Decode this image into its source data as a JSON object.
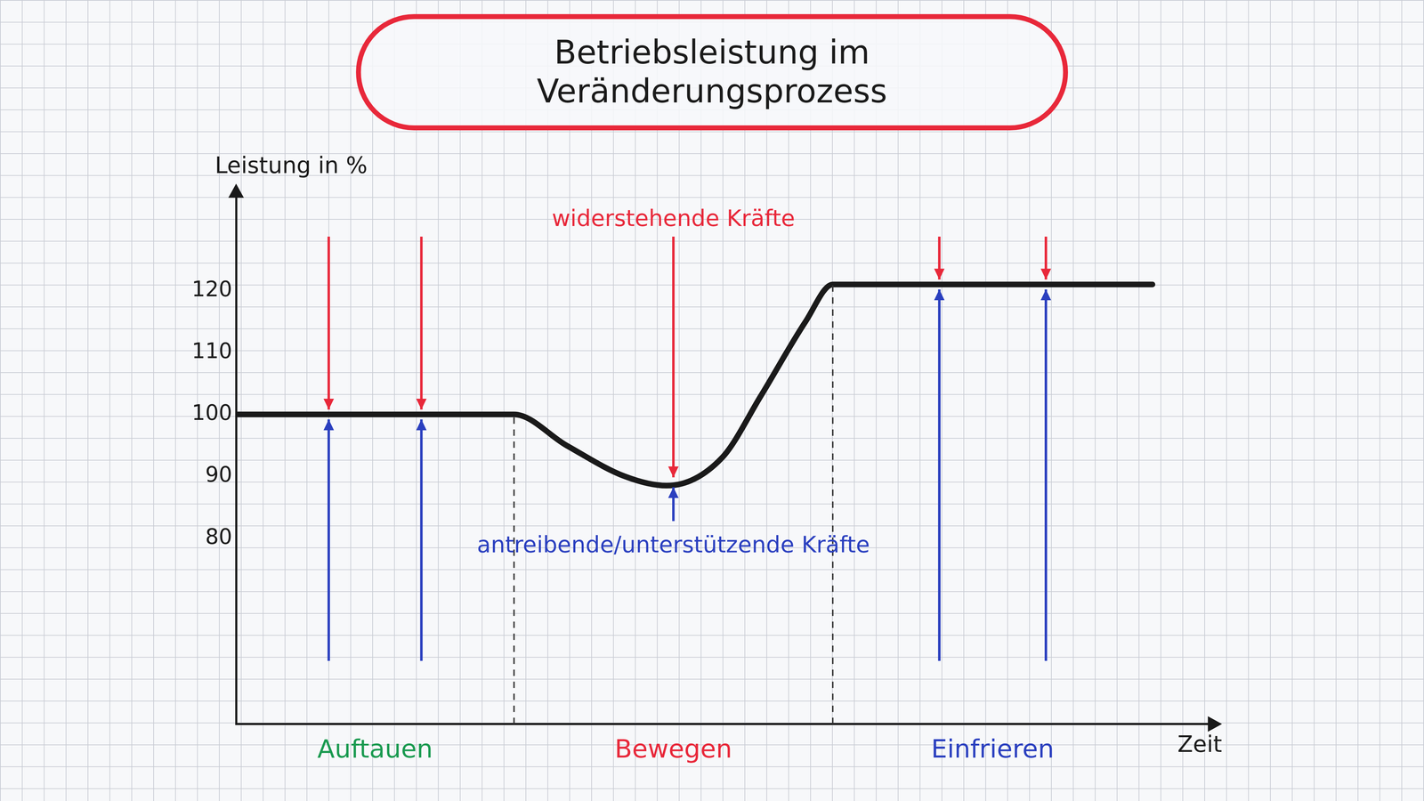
{
  "chart_data": {
    "type": "line",
    "title": "Betriebsleistung im Veränderungsprozess",
    "y_label": "Leistung in %",
    "x_label": "Zeit",
    "x": [
      0,
      1,
      2,
      2.86,
      3.4,
      4.0,
      4.43,
      5.0,
      5.4,
      5.86,
      6.14,
      7,
      8,
      9.43
    ],
    "values": [
      100,
      100,
      100,
      100,
      95,
      90,
      88.5,
      93,
      103,
      115,
      121,
      121,
      121,
      121
    ],
    "color": "#1a1a1a",
    "xlim": [
      0,
      10
    ],
    "ylim": [
      50,
      135
    ],
    "yticks": [
      80,
      90,
      100,
      110,
      120
    ],
    "tick_labels": "y",
    "grid": false,
    "phases": [
      {
        "name": "Auftauen",
        "start": 0,
        "end": 2.86,
        "color": "#1a9a50"
      },
      {
        "name": "Bewegen",
        "start": 2.86,
        "end": 6.14,
        "color": "#e8283a"
      },
      {
        "name": "Einfrieren",
        "start": 6.14,
        "end": 10,
        "color": "#2a3fbf"
      }
    ],
    "annotations": [
      {
        "text": "widerstehende Kräfte",
        "color": "#e8283a"
      },
      {
        "text": "antreibende/unterstützende Kräfte",
        "color": "#2a3fbf"
      }
    ]
  }
}
